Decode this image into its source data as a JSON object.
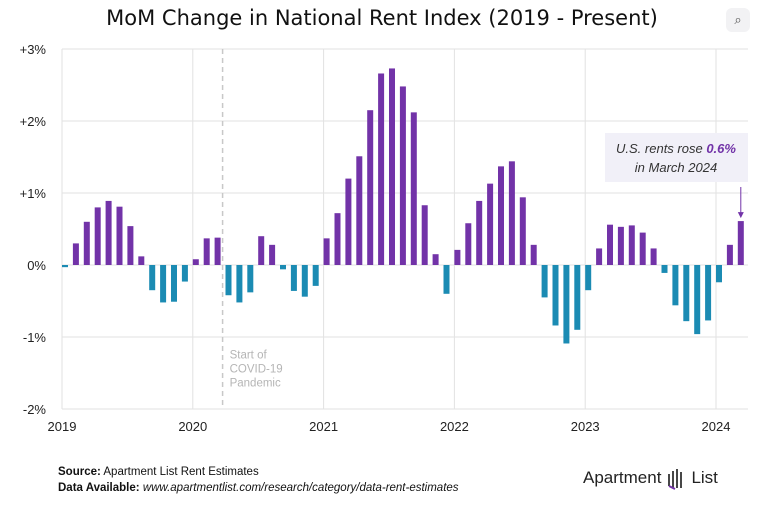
{
  "chart_data": {
    "type": "bar",
    "title": "MoM Change in National Rent Index (2019 - Present)",
    "xlabel": "",
    "ylabel": "",
    "ylim": [
      -2,
      3
    ],
    "yticks": [
      "-2%",
      "-1%",
      "0%",
      "+1%",
      "+2%",
      "+3%"
    ],
    "xticks": [
      "2019",
      "2020",
      "2021",
      "2022",
      "2023",
      "2024"
    ],
    "grid": true,
    "colors": {
      "positive": "#7233a8",
      "negative": "#1b8bb3",
      "marker": "#c8c8c8"
    },
    "categories": [
      "2019-01",
      "2019-02",
      "2019-03",
      "2019-04",
      "2019-05",
      "2019-06",
      "2019-07",
      "2019-08",
      "2019-09",
      "2019-10",
      "2019-11",
      "2019-12",
      "2020-01",
      "2020-02",
      "2020-03",
      "2020-04",
      "2020-05",
      "2020-06",
      "2020-07",
      "2020-08",
      "2020-09",
      "2020-10",
      "2020-11",
      "2020-12",
      "2021-01",
      "2021-02",
      "2021-03",
      "2021-04",
      "2021-05",
      "2021-06",
      "2021-07",
      "2021-08",
      "2021-09",
      "2021-10",
      "2021-11",
      "2021-12",
      "2022-01",
      "2022-02",
      "2022-03",
      "2022-04",
      "2022-05",
      "2022-06",
      "2022-07",
      "2022-08",
      "2022-09",
      "2022-10",
      "2022-11",
      "2022-12",
      "2023-01",
      "2023-02",
      "2023-03",
      "2023-04",
      "2023-05",
      "2023-06",
      "2023-07",
      "2023-08",
      "2023-09",
      "2023-10",
      "2023-11",
      "2023-12",
      "2024-01",
      "2024-02",
      "2024-03"
    ],
    "values": [
      -0.03,
      0.3,
      0.6,
      0.8,
      0.89,
      0.81,
      0.54,
      0.12,
      -0.35,
      -0.52,
      -0.51,
      -0.23,
      0.08,
      0.37,
      0.38,
      -0.42,
      -0.52,
      -0.38,
      0.4,
      0.28,
      -0.06,
      -0.36,
      -0.44,
      -0.29,
      0.37,
      0.72,
      1.2,
      1.51,
      2.15,
      2.66,
      2.73,
      2.48,
      2.12,
      0.83,
      0.15,
      -0.4,
      0.21,
      0.58,
      0.89,
      1.13,
      1.37,
      1.44,
      0.94,
      0.28,
      -0.45,
      -0.84,
      -1.09,
      -0.9,
      -0.35,
      0.23,
      0.56,
      0.53,
      0.55,
      0.45,
      0.23,
      -0.11,
      -0.56,
      -0.78,
      -0.96,
      -0.77,
      -0.24,
      0.28,
      0.61
    ],
    "annotations": {
      "covid": {
        "lines": [
          "Start of",
          "COVID-19",
          "Pandemic"
        ],
        "date": "2020-03"
      },
      "callout": {
        "prefix": "U.S. rents rose ",
        "value": "0.6%",
        "line2": "in March 2024"
      }
    }
  },
  "icons": {
    "lens": "image-search-icon"
  },
  "footer": {
    "source_label": "Source:",
    "source": "Apartment List Rent Estimates",
    "data_label": "Data Available:",
    "data_url": "www.apartmentlist.com/research/category/data-rent-estimates"
  },
  "logo": {
    "left": "Apartment",
    "right": "List"
  }
}
